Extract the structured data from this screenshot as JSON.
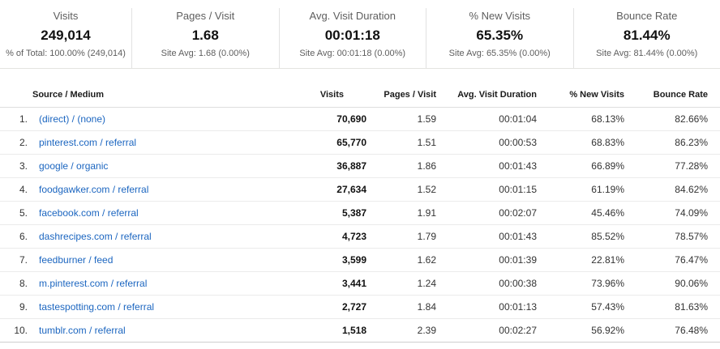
{
  "metrics": {
    "cards": [
      {
        "label": "Visits",
        "value": "249,014",
        "subtitle": "% of Total: 100.00% (249,014)"
      },
      {
        "label": "Pages / Visit",
        "value": "1.68",
        "subtitle": "Site Avg: 1.68 (0.00%)"
      },
      {
        "label": "Avg. Visit Duration",
        "value": "00:01:18",
        "subtitle": "Site Avg: 00:01:18 (0.00%)"
      },
      {
        "label": "% New Visits",
        "value": "65.35%",
        "subtitle": "Site Avg: 65.35% (0.00%)"
      },
      {
        "label": "Bounce Rate",
        "value": "81.44%",
        "subtitle": "Site Avg: 81.44% (0.00%)"
      }
    ]
  },
  "table": {
    "columns": {
      "source": "Source / Medium",
      "visits": "Visits",
      "pages_per_visit": "Pages / Visit",
      "avg_visit_duration": "Avg. Visit Duration",
      "pct_new_visits": "% New Visits",
      "bounce_rate": "Bounce Rate"
    },
    "rows": [
      {
        "rank": "1.",
        "source": "(direct) / (none)",
        "visits": "70,690",
        "pages_per_visit": "1.59",
        "avg_visit_duration": "00:01:04",
        "pct_new_visits": "68.13%",
        "bounce_rate": "82.66%"
      },
      {
        "rank": "2.",
        "source": "pinterest.com / referral",
        "visits": "65,770",
        "pages_per_visit": "1.51",
        "avg_visit_duration": "00:00:53",
        "pct_new_visits": "68.83%",
        "bounce_rate": "86.23%"
      },
      {
        "rank": "3.",
        "source": "google / organic",
        "visits": "36,887",
        "pages_per_visit": "1.86",
        "avg_visit_duration": "00:01:43",
        "pct_new_visits": "66.89%",
        "bounce_rate": "77.28%"
      },
      {
        "rank": "4.",
        "source": "foodgawker.com / referral",
        "visits": "27,634",
        "pages_per_visit": "1.52",
        "avg_visit_duration": "00:01:15",
        "pct_new_visits": "61.19%",
        "bounce_rate": "84.62%"
      },
      {
        "rank": "5.",
        "source": "facebook.com / referral",
        "visits": "5,387",
        "pages_per_visit": "1.91",
        "avg_visit_duration": "00:02:07",
        "pct_new_visits": "45.46%",
        "bounce_rate": "74.09%"
      },
      {
        "rank": "6.",
        "source": "dashrecipes.com / referral",
        "visits": "4,723",
        "pages_per_visit": "1.79",
        "avg_visit_duration": "00:01:43",
        "pct_new_visits": "85.52%",
        "bounce_rate": "78.57%"
      },
      {
        "rank": "7.",
        "source": "feedburner / feed",
        "visits": "3,599",
        "pages_per_visit": "1.62",
        "avg_visit_duration": "00:01:39",
        "pct_new_visits": "22.81%",
        "bounce_rate": "76.47%"
      },
      {
        "rank": "8.",
        "source": "m.pinterest.com / referral",
        "visits": "3,441",
        "pages_per_visit": "1.24",
        "avg_visit_duration": "00:00:38",
        "pct_new_visits": "73.96%",
        "bounce_rate": "90.06%"
      },
      {
        "rank": "9.",
        "source": "tastespotting.com / referral",
        "visits": "2,727",
        "pages_per_visit": "1.84",
        "avg_visit_duration": "00:01:13",
        "pct_new_visits": "57.43%",
        "bounce_rate": "81.63%"
      },
      {
        "rank": "10.",
        "source": "tumblr.com / referral",
        "visits": "1,518",
        "pages_per_visit": "2.39",
        "avg_visit_duration": "00:02:27",
        "pct_new_visits": "56.92%",
        "bounce_rate": "76.48%"
      }
    ]
  },
  "colors": {
    "link_blue": "#1c66c0",
    "divider": "#e2e2e2",
    "row_border": "#ebebeb"
  }
}
